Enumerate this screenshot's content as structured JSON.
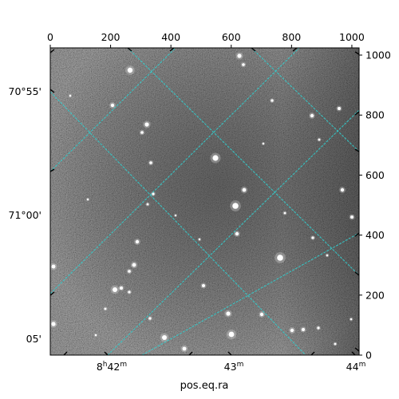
{
  "chart_data": {
    "type": "image",
    "title": "",
    "xlabel": "pos.eq.ra",
    "ylabel": "",
    "pixel_axes": {
      "x_ticks": [
        0,
        200,
        400,
        600,
        800,
        1000
      ],
      "x_tick_labels": [
        "0",
        "200",
        "400",
        "600",
        "800",
        "1000"
      ],
      "y_ticks": [
        0,
        200,
        400,
        600,
        800,
        1000
      ],
      "y_tick_labels": [
        "0",
        "200",
        "400",
        "600",
        "800",
        "1000"
      ],
      "xlim": [
        0,
        1024
      ],
      "ylim": [
        0,
        1024
      ]
    },
    "ra_ticks": [
      {
        "label": "8h42m",
        "hours": "8",
        "minutes": "42"
      },
      {
        "label": "43m",
        "minutes": "43"
      },
      {
        "label": "44m",
        "minutes": "44"
      }
    ],
    "dec_ticks": [
      {
        "label": "70°55'"
      },
      {
        "label": "71°00'"
      },
      {
        "label": "05'"
      }
    ],
    "grid": true,
    "grid_color": "#33cccc",
    "colormap": "gray",
    "background_color": "#4a4a4a"
  }
}
